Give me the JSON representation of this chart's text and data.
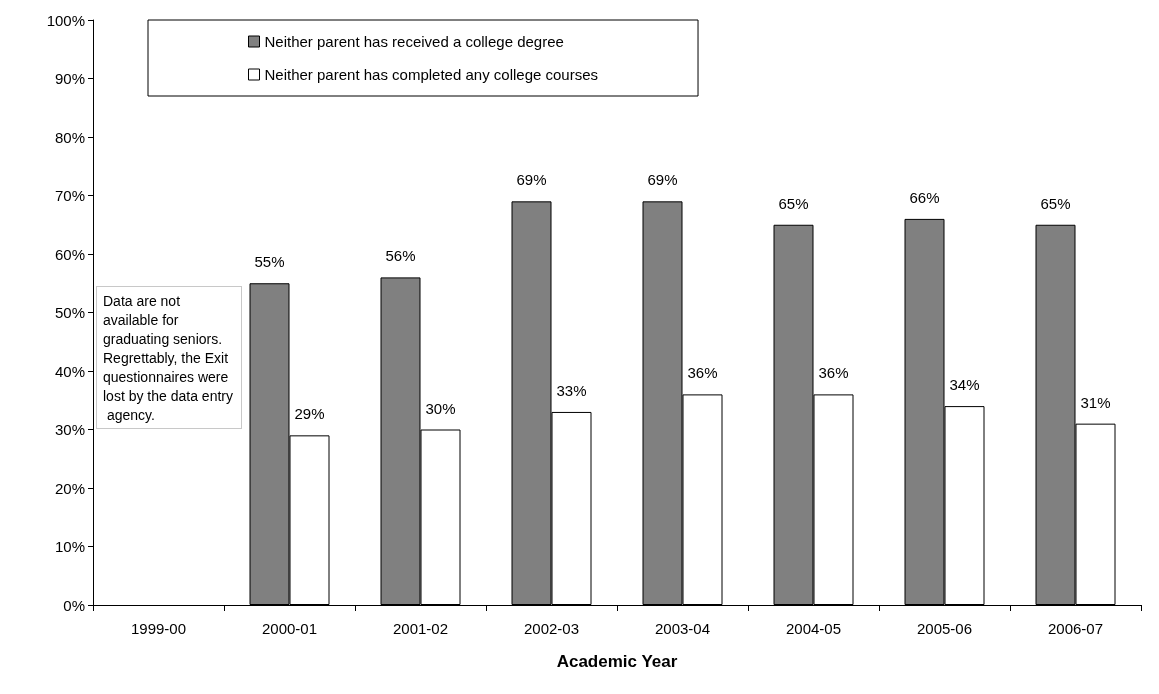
{
  "chart_data": {
    "type": "bar",
    "xlabel": "Academic Year",
    "categories": [
      "1999-00",
      "2000-01",
      "2001-02",
      "2002-03",
      "2003-04",
      "2004-05",
      "2005-06",
      "2006-07"
    ],
    "series": [
      {
        "name": "Neither parent has received a college degree",
        "color": "#808080",
        "values": [
          null,
          55,
          56,
          69,
          69,
          65,
          66,
          65
        ],
        "value_labels": [
          null,
          "55%",
          "56%",
          "69%",
          "69%",
          "65%",
          "66%",
          "65%"
        ]
      },
      {
        "name": "Neither parent has completed any college courses",
        "color": "#ffffff",
        "values": [
          null,
          29,
          30,
          33,
          36,
          36,
          34,
          31
        ],
        "value_labels": [
          null,
          "29%",
          "30%",
          "33%",
          "36%",
          "36%",
          "34%",
          "31%"
        ]
      }
    ],
    "ylim": [
      0,
      100
    ],
    "yticks": [
      {
        "value": 0,
        "label": "0%"
      },
      {
        "value": 10,
        "label": "10%"
      },
      {
        "value": 20,
        "label": "20%"
      },
      {
        "value": 30,
        "label": "30%"
      },
      {
        "value": 40,
        "label": "40%"
      },
      {
        "value": 50,
        "label": "50%"
      },
      {
        "value": 60,
        "label": "60%"
      },
      {
        "value": 70,
        "label": "70%"
      },
      {
        "value": 80,
        "label": "80%"
      },
      {
        "value": 90,
        "label": "90%"
      },
      {
        "value": 100,
        "label": "100%"
      }
    ],
    "annotations": [
      "Data are not available for graduating seniors. Regrettably, the Exit questionnaires were lost by the data entry agency."
    ],
    "legend": "top",
    "grid": false
  }
}
